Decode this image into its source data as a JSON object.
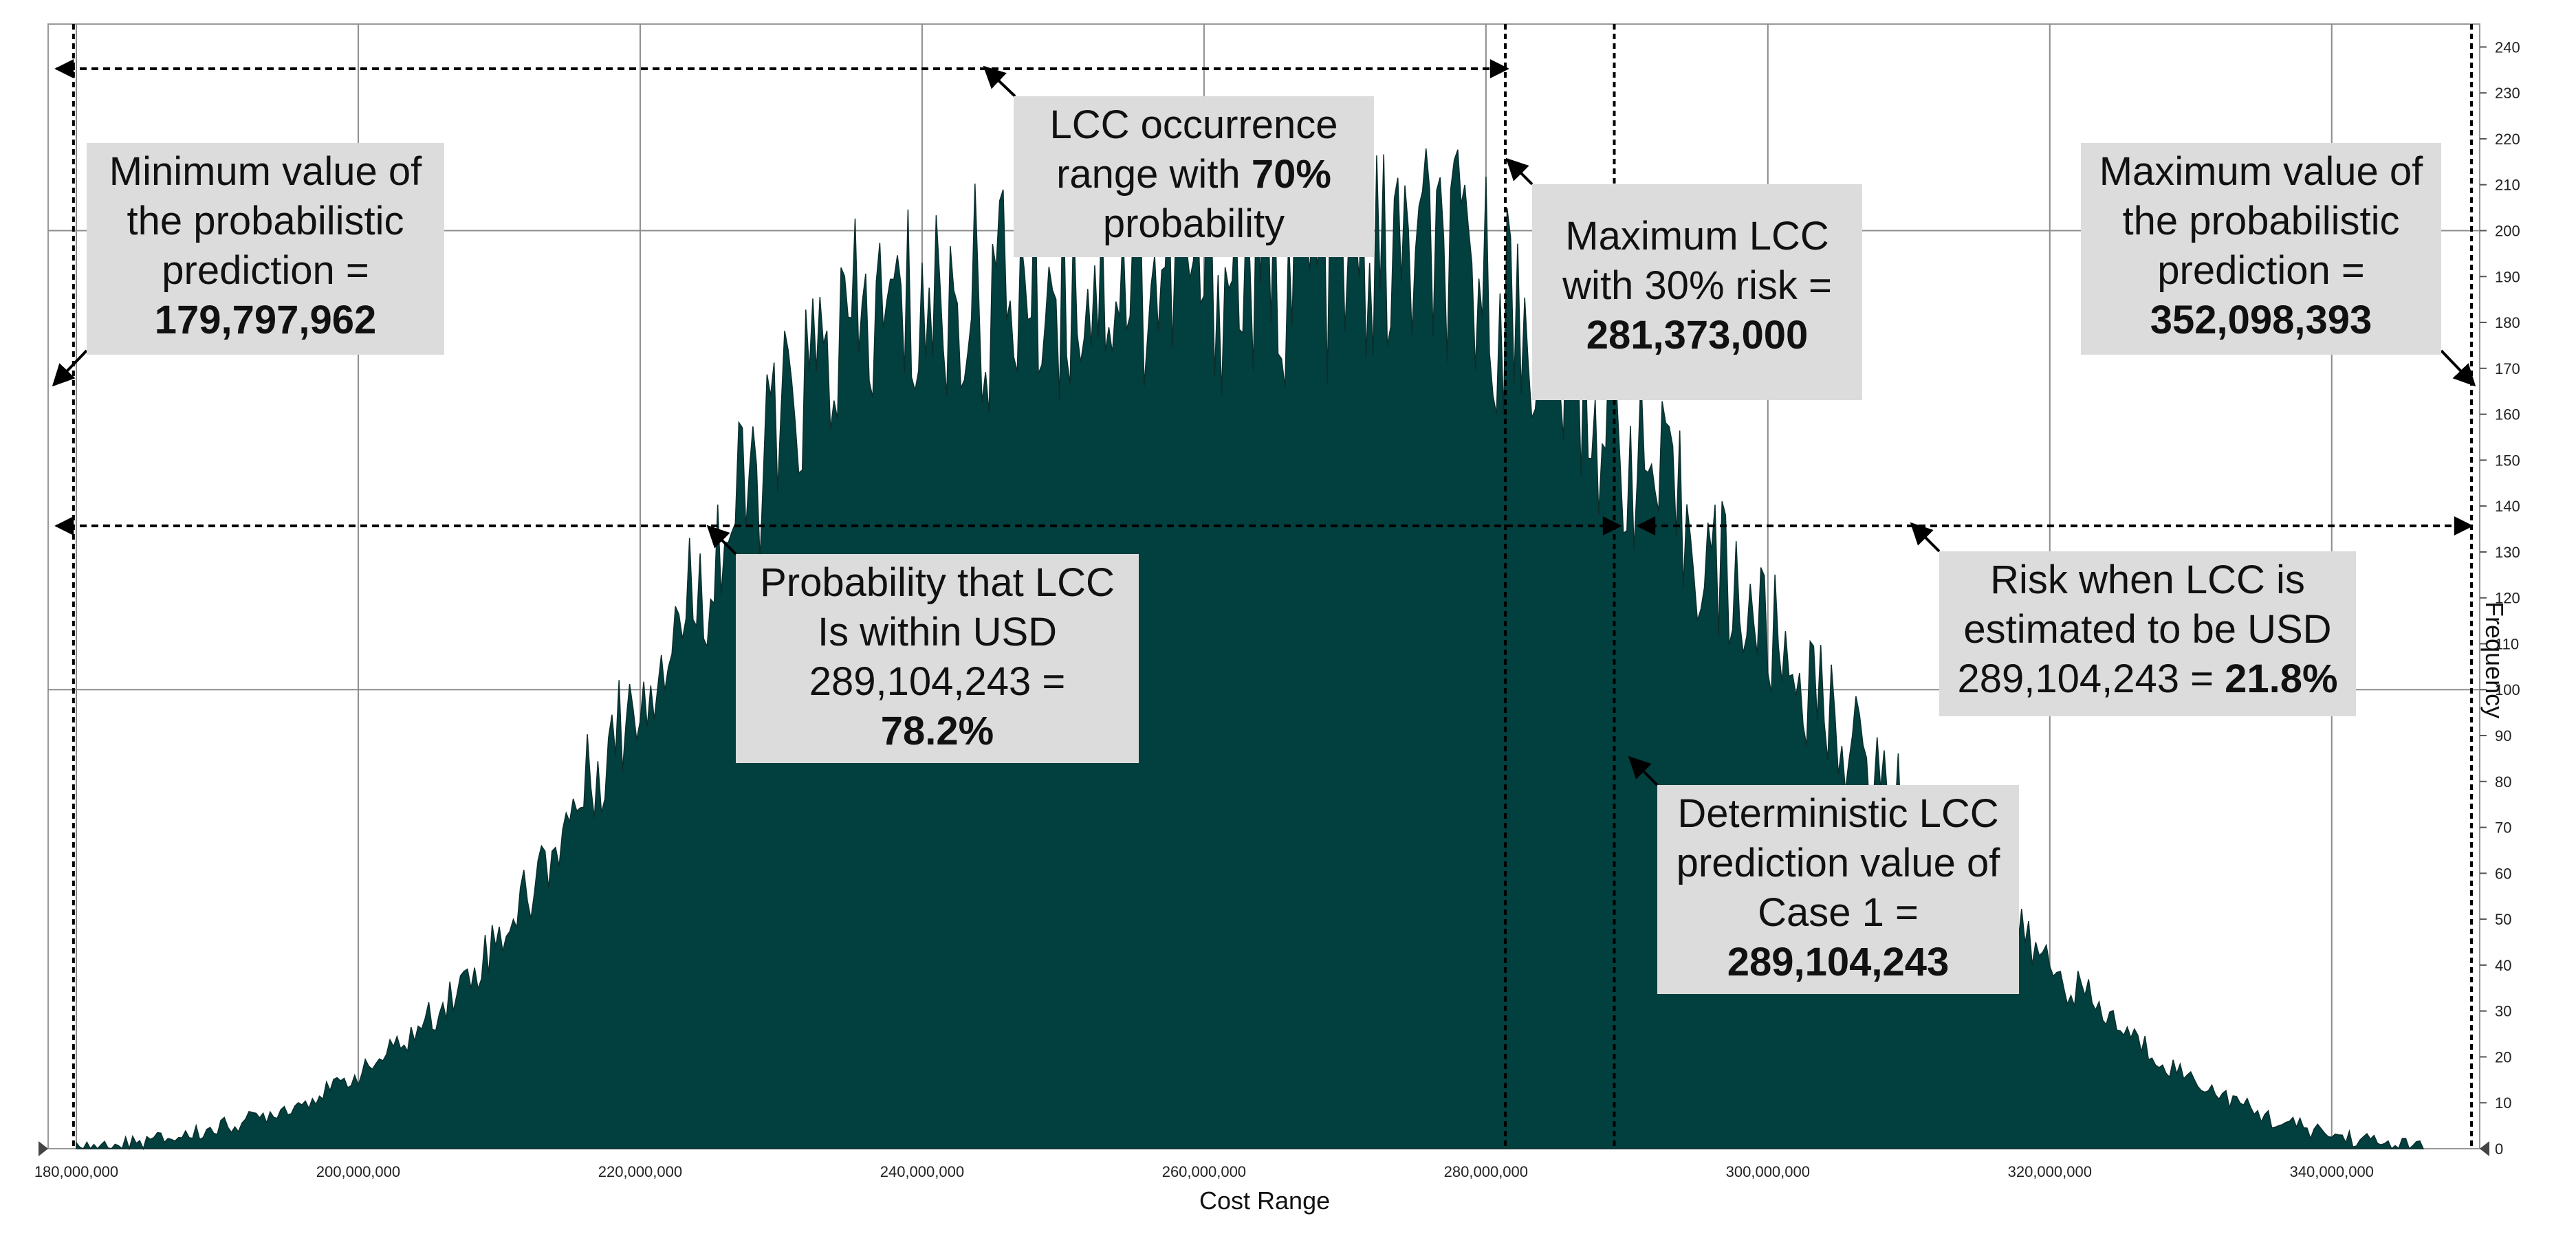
{
  "chart_data": {
    "type": "area",
    "title": "",
    "xlabel": "Cost Range",
    "ylabel": "Frequency",
    "xlim": [
      178000000,
      350500000
    ],
    "ylim": [
      0,
      245
    ],
    "x_ticks": [
      "180,000,000",
      "200,000,000",
      "220,000,000",
      "240,000,000",
      "260,000,000",
      "280,000,000",
      "300,000,000",
      "320,000,000",
      "340,000,000"
    ],
    "x_tick_values": [
      180000000,
      200000000,
      220000000,
      240000000,
      260000000,
      280000000,
      300000000,
      320000000,
      340000000
    ],
    "y_ticks": [
      "0",
      "10",
      "20",
      "30",
      "40",
      "50",
      "60",
      "70",
      "80",
      "90",
      "100",
      "110",
      "120",
      "130",
      "140",
      "150",
      "160",
      "170",
      "180",
      "190",
      "200",
      "210",
      "220",
      "230",
      "240"
    ],
    "y_tick_values": [
      0,
      10,
      20,
      30,
      40,
      50,
      60,
      70,
      80,
      90,
      100,
      110,
      120,
      130,
      140,
      150,
      160,
      170,
      180,
      190,
      200,
      210,
      220,
      230,
      240
    ],
    "grid": true,
    "fill_color": "#02403f",
    "series": [
      {
        "name": "Frequency",
        "x": [
          180000000,
          184000000,
          188000000,
          192000000,
          196000000,
          200000000,
          204000000,
          208000000,
          212000000,
          216000000,
          220000000,
          224000000,
          228000000,
          232000000,
          236000000,
          240000000,
          244000000,
          248000000,
          252000000,
          256000000,
          260000000,
          264000000,
          268000000,
          272000000,
          276000000,
          280000000,
          284000000,
          288000000,
          292000000,
          296000000,
          300000000,
          304000000,
          308000000,
          312000000,
          316000000,
          320000000,
          324000000,
          328000000,
          332000000,
          336000000,
          340000000,
          344000000,
          346500000
        ],
        "values": [
          0,
          1,
          3,
          6,
          10,
          16,
          25,
          38,
          55,
          78,
          100,
          122,
          145,
          168,
          180,
          183,
          185,
          188,
          190,
          190,
          190,
          191,
          192,
          193,
          194,
          188,
          176,
          160,
          145,
          128,
          112,
          96,
          80,
          66,
          52,
          40,
          29,
          19,
          12,
          6,
          3,
          1,
          0
        ]
      }
    ],
    "markers": {
      "min_value": 179797962,
      "max_value": 352098393,
      "max_lcc_30_risk": 281373000,
      "deterministic_case1": 289104243
    }
  },
  "annotations": {
    "min_box": {
      "l1": "Minimum value of",
      "l2": "the probabilistic",
      "l3": "prediction =",
      "value": "179,797,962"
    },
    "range_box": {
      "l1": "LCC occurrence",
      "l2_pre": "range with ",
      "l2_bold": "70%",
      "l3": "probability"
    },
    "max_lcc_box": {
      "l1": "Maximum LCC",
      "l2": "with 30% risk =",
      "value": "281,373,000"
    },
    "max_box": {
      "l1": "Maximum value of",
      "l2": "the probabilistic",
      "l3": "prediction =",
      "value": "352,098,393"
    },
    "prob_box": {
      "l1": "Probability that LCC",
      "l2": "Is within USD",
      "l3": "289,104,243  =",
      "value": "78.2%"
    },
    "risk_box": {
      "l1": "Risk when LCC is",
      "l2": "estimated to be USD",
      "l3_pre": "289,104,243 = ",
      "l3_bold": "21.8%"
    },
    "det_box": {
      "l1": "Deterministic LCC",
      "l2": "prediction value of",
      "l3": "Case 1 =",
      "value": "289,104,243"
    }
  }
}
